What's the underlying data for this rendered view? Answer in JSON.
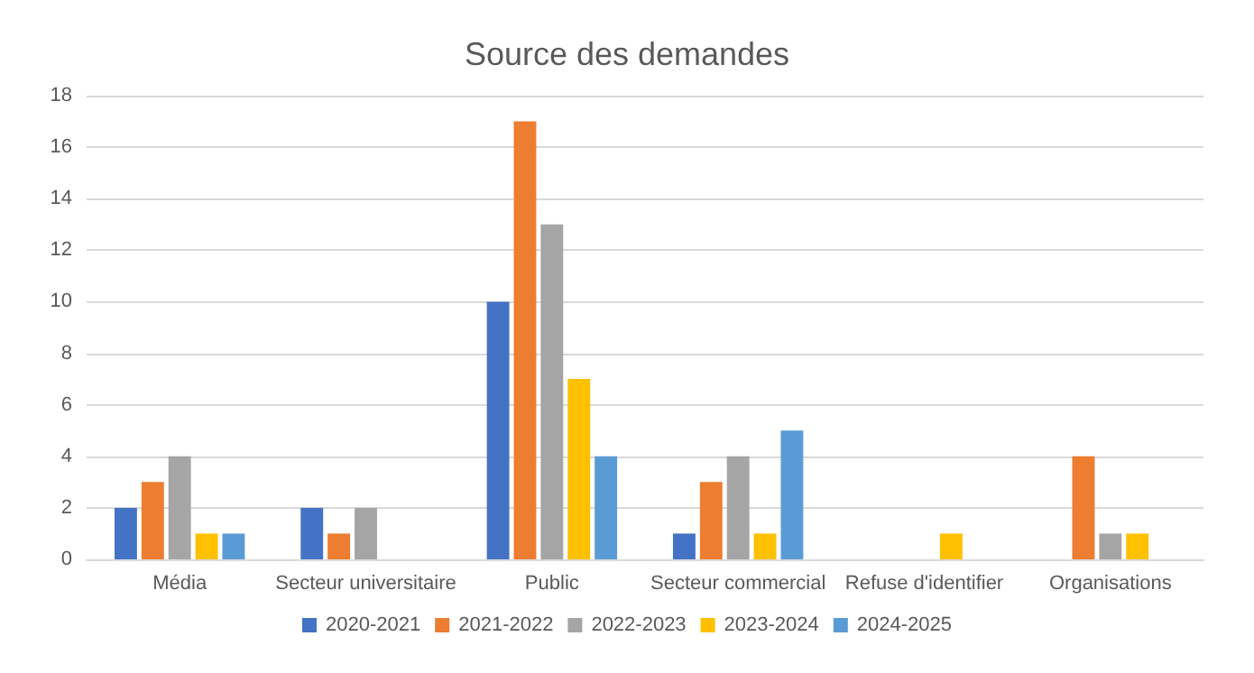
{
  "chart_data": {
    "type": "bar",
    "title": "Source des demandes",
    "categories": [
      "Média",
      "Secteur universitaire",
      "Public",
      "Secteur commercial",
      "Refuse d'identifier",
      "Organisations"
    ],
    "series": [
      {
        "name": "2020-2021",
        "color": "#4472c4",
        "values": [
          2,
          2,
          10,
          1,
          0,
          0
        ]
      },
      {
        "name": "2021-2022",
        "color": "#ed7d31",
        "values": [
          3,
          1,
          17,
          3,
          0,
          4
        ]
      },
      {
        "name": "2022-2023",
        "color": "#a5a5a5",
        "values": [
          4,
          2,
          13,
          4,
          0,
          1
        ]
      },
      {
        "name": "2023-2024",
        "color": "#ffc000",
        "values": [
          1,
          0,
          7,
          1,
          1,
          1
        ]
      },
      {
        "name": "2024-2025",
        "color": "#5b9bd5",
        "values": [
          1,
          0,
          4,
          5,
          0,
          0
        ]
      }
    ],
    "ylim": [
      0,
      18
    ],
    "yticks": [
      0,
      2,
      4,
      6,
      8,
      10,
      12,
      14,
      16,
      18
    ],
    "grid": "y",
    "legend": "bottom"
  }
}
